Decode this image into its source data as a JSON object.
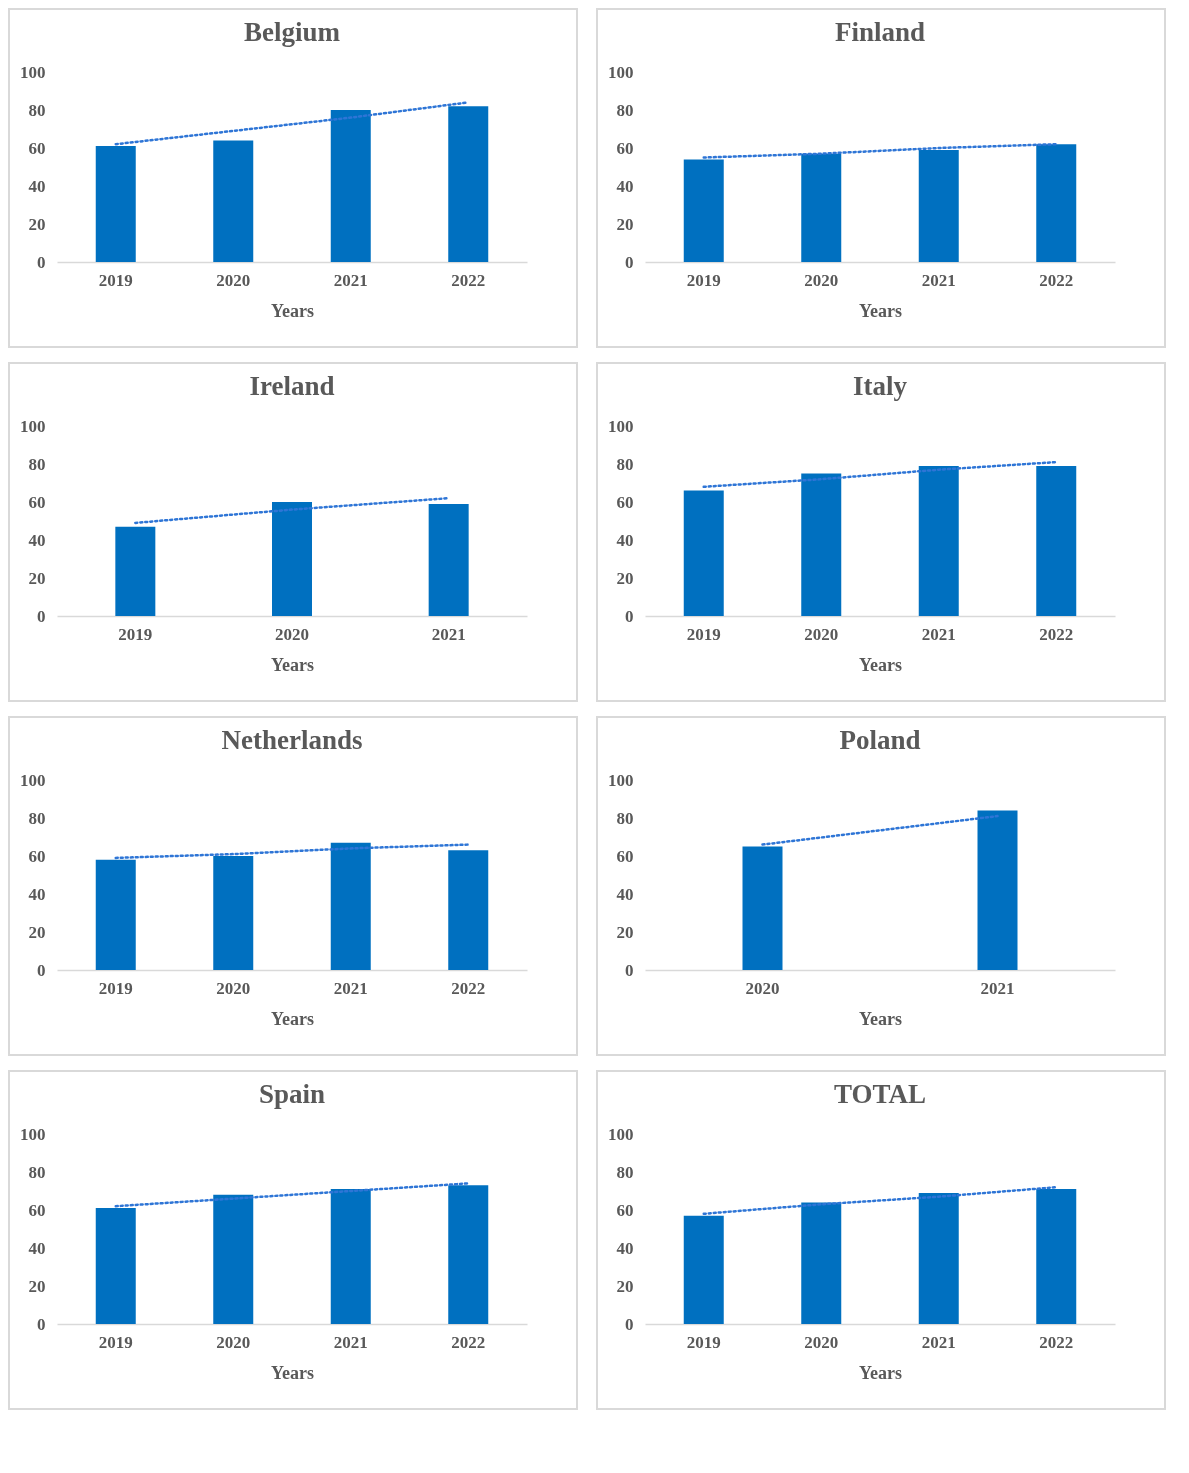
{
  "chart_data": [
    {
      "type": "bar",
      "title": "Belgium",
      "xlabel": "Years",
      "categories": [
        "2019",
        "2020",
        "2021",
        "2022"
      ],
      "ylim": [
        0,
        100
      ],
      "yticks": [
        0,
        20,
        40,
        60,
        80,
        100
      ],
      "grid": false,
      "series": [
        {
          "color": "#0070c0",
          "values": [
            61,
            64,
            80,
            82
          ]
        },
        {
          "type": "line",
          "color": "#2e75d6",
          "line_style": "dotted",
          "marker": "none",
          "values": [
            62,
            69,
            76,
            84
          ]
        }
      ]
    },
    {
      "type": "bar",
      "title": "Finland",
      "xlabel": "Years",
      "categories": [
        "2019",
        "2020",
        "2021",
        "2022"
      ],
      "ylim": [
        0,
        100
      ],
      "yticks": [
        0,
        20,
        40,
        60,
        80,
        100
      ],
      "grid": false,
      "series": [
        {
          "color": "#0070c0",
          "values": [
            54,
            57,
            59,
            62
          ]
        },
        {
          "type": "line",
          "color": "#2e75d6",
          "line_style": "dotted",
          "marker": "none",
          "values": [
            55,
            57,
            60,
            62
          ]
        }
      ]
    },
    {
      "type": "bar",
      "title": "Ireland",
      "xlabel": "Years",
      "categories": [
        "2019",
        "2020",
        "2021"
      ],
      "ylim": [
        0,
        100
      ],
      "yticks": [
        0,
        20,
        40,
        60,
        80,
        100
      ],
      "grid": false,
      "series": [
        {
          "color": "#0070c0",
          "values": [
            47,
            60,
            59
          ]
        },
        {
          "type": "line",
          "color": "#2e75d6",
          "line_style": "dotted",
          "marker": "none",
          "values": [
            49,
            56,
            62
          ]
        }
      ]
    },
    {
      "type": "bar",
      "title": "Italy",
      "xlabel": "Years",
      "categories": [
        "2019",
        "2020",
        "2021",
        "2022"
      ],
      "ylim": [
        0,
        100
      ],
      "yticks": [
        0,
        20,
        40,
        60,
        80,
        100
      ],
      "grid": false,
      "series": [
        {
          "color": "#0070c0",
          "values": [
            66,
            75,
            79,
            79
          ]
        },
        {
          "type": "line",
          "color": "#2e75d6",
          "line_style": "dotted",
          "marker": "none",
          "values": [
            68,
            72,
            77,
            81
          ]
        }
      ]
    },
    {
      "type": "bar",
      "title": "Netherlands",
      "xlabel": "Years",
      "categories": [
        "2019",
        "2020",
        "2021",
        "2022"
      ],
      "ylim": [
        0,
        100
      ],
      "yticks": [
        0,
        20,
        40,
        60,
        80,
        100
      ],
      "grid": false,
      "series": [
        {
          "color": "#0070c0",
          "values": [
            58,
            60,
            67,
            63
          ]
        },
        {
          "type": "line",
          "color": "#2e75d6",
          "line_style": "dotted",
          "marker": "none",
          "values": [
            59,
            61,
            64,
            66
          ]
        }
      ]
    },
    {
      "type": "bar",
      "title": "Poland",
      "xlabel": "Years",
      "categories": [
        "2020",
        "2021"
      ],
      "ylim": [
        0,
        100
      ],
      "yticks": [
        0,
        20,
        40,
        60,
        80,
        100
      ],
      "grid": false,
      "series": [
        {
          "color": "#0070c0",
          "values": [
            65,
            84
          ]
        },
        {
          "type": "line",
          "color": "#2e75d6",
          "line_style": "dotted",
          "marker": "none",
          "values": [
            66,
            81
          ]
        }
      ]
    },
    {
      "type": "bar",
      "title": "Spain",
      "xlabel": "Years",
      "categories": [
        "2019",
        "2020",
        "2021",
        "2022"
      ],
      "ylim": [
        0,
        100
      ],
      "yticks": [
        0,
        20,
        40,
        60,
        80,
        100
      ],
      "grid": false,
      "series": [
        {
          "color": "#0070c0",
          "values": [
            61,
            68,
            71,
            73
          ]
        },
        {
          "type": "line",
          "color": "#2e75d6",
          "line_style": "dotted",
          "marker": "none",
          "values": [
            62,
            66,
            70,
            74
          ]
        }
      ]
    },
    {
      "type": "bar",
      "title": "TOTAL",
      "xlabel": "Years",
      "categories": [
        "2019",
        "2020",
        "2021",
        "2022"
      ],
      "ylim": [
        0,
        100
      ],
      "yticks": [
        0,
        20,
        40,
        60,
        80,
        100
      ],
      "grid": false,
      "series": [
        {
          "color": "#0070c0",
          "values": [
            57,
            64,
            69,
            71
          ]
        },
        {
          "type": "line",
          "color": "#2e75d6",
          "line_style": "dotted",
          "marker": "none",
          "values": [
            58,
            63,
            67,
            72
          ]
        }
      ]
    }
  ]
}
